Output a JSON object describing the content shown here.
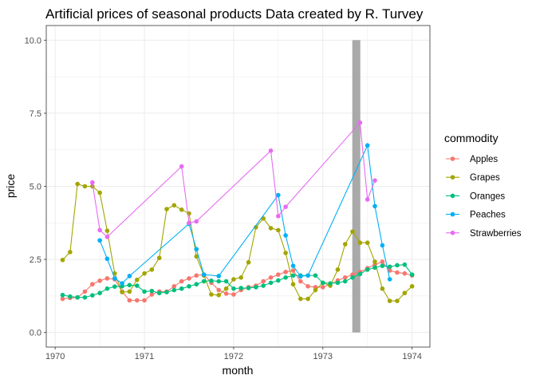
{
  "chart_data": {
    "type": "line",
    "title": "Artificial prices of seasonal products Data created by R. Turvey",
    "xlabel": "month",
    "ylabel": "price",
    "xlim": [
      1969.9,
      1974.2
    ],
    "ylim": [
      -0.5,
      10.5
    ],
    "x_ticks": [
      1970,
      1971,
      1972,
      1973,
      1974
    ],
    "y_ticks": [
      0.0,
      2.5,
      5.0,
      7.5,
      10.0
    ],
    "x_tick_labels": [
      "1970",
      "1971",
      "1972",
      "1973",
      "1974"
    ],
    "y_tick_labels": [
      "0.0",
      "2.5",
      "5.0",
      "7.5",
      "10.0"
    ],
    "grid": true,
    "legend_position": "right",
    "legend_title": "commodity",
    "highlight_band": {
      "x0": 1973.33,
      "x1": 1973.42,
      "y0": 0,
      "y1": 10,
      "color": "#a9a9a9"
    },
    "series": [
      {
        "name": "Apples",
        "color": "#F8766D",
        "x": [
          1970.083,
          1970.167,
          1970.25,
          1970.333,
          1970.417,
          1970.5,
          1970.583,
          1970.667,
          1970.75,
          1970.833,
          1970.917,
          1971.0,
          1971.083,
          1971.167,
          1971.25,
          1971.333,
          1971.417,
          1971.5,
          1971.583,
          1971.667,
          1971.75,
          1971.833,
          1971.917,
          1972.0,
          1972.083,
          1972.167,
          1972.25,
          1972.333,
          1972.417,
          1972.5,
          1972.583,
          1972.667,
          1972.75,
          1972.833,
          1972.917,
          1973.0,
          1973.083,
          1973.167,
          1973.25,
          1973.333,
          1973.417,
          1973.5,
          1973.583,
          1973.667,
          1973.75,
          1973.833,
          1973.917,
          1974.0
        ],
        "values": [
          1.15,
          1.18,
          1.2,
          1.4,
          1.65,
          1.77,
          1.85,
          1.82,
          1.4,
          1.1,
          1.1,
          1.1,
          1.3,
          1.4,
          1.4,
          1.58,
          1.75,
          1.85,
          1.95,
          1.98,
          1.7,
          1.45,
          1.33,
          1.3,
          1.45,
          1.55,
          1.6,
          1.75,
          1.88,
          1.98,
          2.07,
          2.12,
          1.75,
          1.58,
          1.55,
          1.55,
          1.65,
          1.78,
          1.88,
          1.98,
          2.07,
          2.2,
          2.32,
          2.42,
          2.12,
          2.05,
          2.02,
          1.95
        ]
      },
      {
        "name": "Grapes",
        "color": "#A3A500",
        "x": [
          1970.083,
          1970.167,
          1970.25,
          1970.333,
          1970.417,
          1970.5,
          1970.583,
          1970.667,
          1970.75,
          1970.833,
          1970.917,
          1971.0,
          1971.083,
          1971.167,
          1971.25,
          1971.333,
          1971.417,
          1971.5,
          1971.583,
          1971.667,
          1971.75,
          1971.833,
          1971.917,
          1972.0,
          1972.083,
          1972.167,
          1972.25,
          1972.333,
          1972.417,
          1972.5,
          1972.583,
          1972.667,
          1972.75,
          1972.833,
          1972.917,
          1973.0,
          1973.083,
          1973.167,
          1973.25,
          1973.333,
          1973.417,
          1973.5,
          1973.583,
          1973.667,
          1973.75,
          1973.833,
          1973.917,
          1974.0
        ],
        "values": [
          2.48,
          2.75,
          5.08,
          5.0,
          5.0,
          4.78,
          3.48,
          2.02,
          1.38,
          1.4,
          1.8,
          2.02,
          2.15,
          2.55,
          4.22,
          4.35,
          4.2,
          4.07,
          2.6,
          1.95,
          1.3,
          1.28,
          1.5,
          1.82,
          1.88,
          2.4,
          3.6,
          3.9,
          3.57,
          3.5,
          2.72,
          1.65,
          1.15,
          1.15,
          1.45,
          1.7,
          1.6,
          2.15,
          3.02,
          3.45,
          3.07,
          3.07,
          2.42,
          1.5,
          1.08,
          1.08,
          1.35,
          1.58
        ]
      },
      {
        "name": "Oranges",
        "color": "#00BF7D",
        "x": [
          1970.083,
          1970.167,
          1970.25,
          1970.333,
          1970.417,
          1970.5,
          1970.583,
          1970.667,
          1970.75,
          1970.833,
          1970.917,
          1971.0,
          1971.083,
          1971.167,
          1971.25,
          1971.333,
          1971.417,
          1971.5,
          1971.583,
          1971.667,
          1971.75,
          1971.833,
          1971.917,
          1972.0,
          1972.083,
          1972.167,
          1972.25,
          1972.333,
          1972.417,
          1972.5,
          1972.583,
          1972.667,
          1972.75,
          1972.833,
          1972.917,
          1973.0,
          1973.083,
          1973.167,
          1973.25,
          1973.333,
          1973.417,
          1973.5,
          1973.583,
          1973.667,
          1973.75,
          1973.833,
          1973.917,
          1974.0
        ],
        "values": [
          1.28,
          1.23,
          1.2,
          1.2,
          1.27,
          1.35,
          1.5,
          1.57,
          1.58,
          1.62,
          1.6,
          1.4,
          1.42,
          1.35,
          1.38,
          1.45,
          1.5,
          1.58,
          1.65,
          1.75,
          1.77,
          1.75,
          1.75,
          1.5,
          1.52,
          1.52,
          1.55,
          1.6,
          1.7,
          1.78,
          1.88,
          1.95,
          1.95,
          1.95,
          1.95,
          1.7,
          1.68,
          1.7,
          1.75,
          1.88,
          2.0,
          2.15,
          2.22,
          2.28,
          2.25,
          2.3,
          2.32,
          1.98
        ]
      },
      {
        "name": "Peaches",
        "color": "#00B0F6",
        "x": [
          1970.5,
          1970.583,
          1970.667,
          1970.75,
          1970.833,
          1971.5,
          1971.583,
          1971.667,
          1971.833,
          1972.5,
          1972.583,
          1972.667,
          1972.75,
          1972.833,
          1973.5,
          1973.583,
          1973.667,
          1973.75
        ],
        "values": [
          3.15,
          2.52,
          1.85,
          1.68,
          1.93,
          3.72,
          2.85,
          1.98,
          1.93,
          4.7,
          3.32,
          2.28,
          1.92,
          1.95,
          6.4,
          4.32,
          2.98,
          1.82
        ]
      },
      {
        "name": "Strawberries",
        "color": "#E76BF3",
        "x": [
          1970.417,
          1970.5,
          1970.583,
          1971.417,
          1971.5,
          1971.583,
          1972.417,
          1972.5,
          1972.583,
          1973.417,
          1973.5,
          1973.583
        ],
        "values": [
          5.13,
          3.5,
          3.27,
          5.68,
          3.75,
          3.8,
          6.22,
          3.98,
          4.3,
          7.18,
          4.55,
          5.2
        ]
      }
    ]
  }
}
